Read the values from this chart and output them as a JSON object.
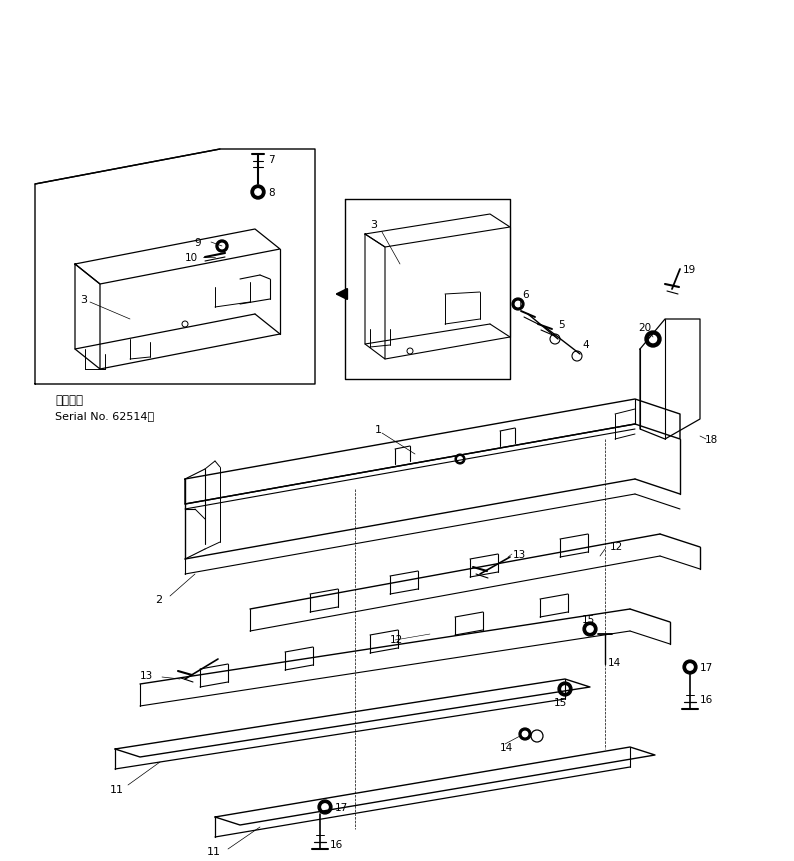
{
  "bg_color": "#ffffff",
  "line_color": "#000000",
  "fig_width": 7.94,
  "fig_height": 8.62,
  "dpi": 100,
  "serial_line1": "適用号機",
  "serial_line2": "Serial No. 62514～"
}
